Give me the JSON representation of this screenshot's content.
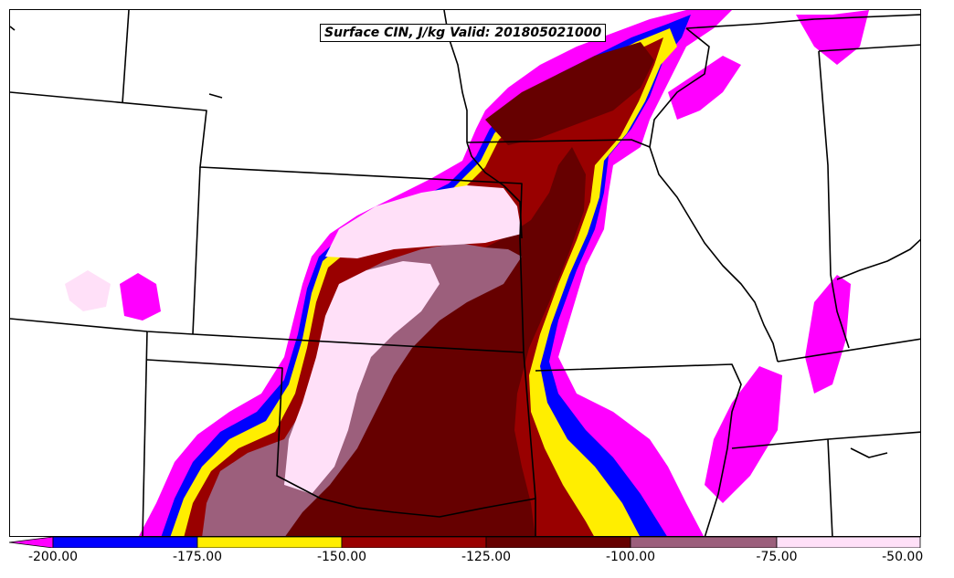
{
  "title": "Surface CIN, J/kg Valid: 201805021000",
  "colors": {
    "c_below_200": "#ff00ff",
    "c_200_175": "#0000ff",
    "c_175_150": "#ffee00",
    "c_150_125": "#990000",
    "c_125_100": "#660000",
    "c_100_75": "#9c5f7c",
    "c_75_50": "#ffe0f8",
    "c_above_50": "#ffffff",
    "border": "#000000"
  },
  "colorbar": {
    "ticks": [
      "-200.00",
      "-175.00",
      "-150.00",
      "-125.00",
      "-100.00",
      "-75.00",
      "-50.00"
    ]
  }
}
